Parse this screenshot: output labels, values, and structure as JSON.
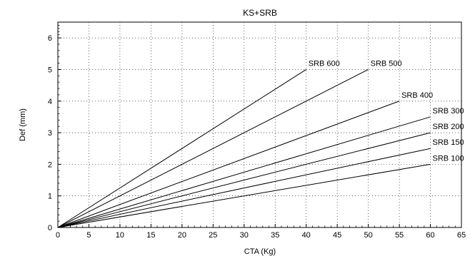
{
  "chart_data": {
    "type": "line",
    "title": "KS+SRB",
    "xlabel": "CTA (Kg)",
    "ylabel": "Def (mm)",
    "xlim": [
      0,
      65
    ],
    "ylim": [
      0,
      6.5
    ],
    "x_ticks": [
      0,
      5,
      10,
      15,
      20,
      25,
      30,
      35,
      40,
      45,
      50,
      55,
      60,
      65
    ],
    "y_ticks": [
      0,
      1,
      2,
      3,
      4,
      5,
      6
    ],
    "grid": true,
    "series": [
      {
        "name": "SRB 600",
        "x": [
          0,
          40
        ],
        "y": [
          0,
          5.0
        ]
      },
      {
        "name": "SRB 500",
        "x": [
          0,
          50
        ],
        "y": [
          0,
          5.0
        ]
      },
      {
        "name": "SRB 400",
        "x": [
          0,
          55
        ],
        "y": [
          0,
          4.0
        ]
      },
      {
        "name": "SRB 300",
        "x": [
          0,
          60
        ],
        "y": [
          0,
          3.5
        ]
      },
      {
        "name": "SRB 200",
        "x": [
          0,
          60
        ],
        "y": [
          0,
          3.0
        ]
      },
      {
        "name": "SRB 150",
        "x": [
          0,
          60
        ],
        "y": [
          0,
          2.5
        ]
      },
      {
        "name": "SRB 100",
        "x": [
          0,
          60
        ],
        "y": [
          0,
          2.0
        ]
      }
    ]
  }
}
